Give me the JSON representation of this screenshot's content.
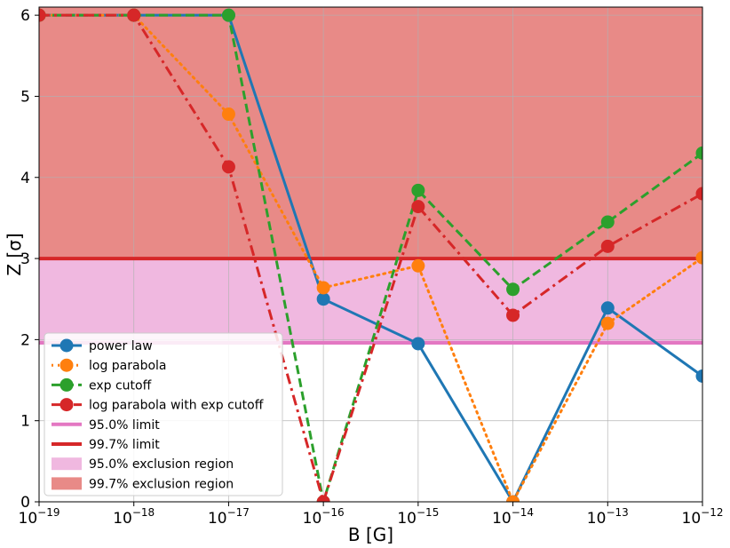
{
  "chart_data": {
    "type": "line",
    "xlabel": "B [G]",
    "ylabel": "Z [σ]",
    "xscale": "log",
    "xlim": [
      1e-19,
      1e-12
    ],
    "ylim": [
      0,
      6.1
    ],
    "grid": true,
    "legend_position": "lower-left",
    "x": [
      1e-19,
      1e-18,
      1e-17,
      1e-16,
      1e-15,
      1e-14,
      1e-13,
      1e-12
    ],
    "x_tick_labels": [
      {
        "base": "10",
        "exp": "−19"
      },
      {
        "base": "10",
        "exp": "−18"
      },
      {
        "base": "10",
        "exp": "−17"
      },
      {
        "base": "10",
        "exp": "−16"
      },
      {
        "base": "10",
        "exp": "−15"
      },
      {
        "base": "10",
        "exp": "−14"
      },
      {
        "base": "10",
        "exp": "−13"
      },
      {
        "base": "10",
        "exp": "−12"
      }
    ],
    "y_ticks": [
      0,
      1,
      2,
      3,
      4,
      5,
      6
    ],
    "y_tick_labels": [
      "0",
      "1",
      "2",
      "3",
      "4",
      "5",
      "6"
    ],
    "series": [
      {
        "name": "power law",
        "color": "#1f77b4",
        "style": "solid",
        "values": [
          6.0,
          6.0,
          6.0,
          2.5,
          1.95,
          0.0,
          2.39,
          1.55
        ]
      },
      {
        "name": "log parabola",
        "color": "#ff7f0e",
        "style": "dotted",
        "values": [
          6.0,
          6.0,
          4.78,
          2.64,
          2.91,
          0.0,
          2.2,
          3.01
        ]
      },
      {
        "name": "exp cutoff",
        "color": "#2ca02c",
        "style": "dashed",
        "values": [
          6.0,
          6.0,
          6.0,
          0.0,
          3.84,
          2.62,
          3.45,
          4.3
        ]
      },
      {
        "name": "log parabola with exp cutoff",
        "color": "#d62728",
        "style": "dashdot",
        "values": [
          6.0,
          6.0,
          4.13,
          0.0,
          3.64,
          2.3,
          3.15,
          3.8
        ]
      }
    ],
    "limits": [
      {
        "name": "95.0% limit",
        "value": 1.96,
        "color": "#e377c2"
      },
      {
        "name": "99.7% limit",
        "value": 3.0,
        "color": "#d62728"
      }
    ],
    "regions": [
      {
        "name": "95.0% exclusion region",
        "from": 1.96,
        "to": 3.0,
        "color": "#f0b8e0"
      },
      {
        "name": "99.7% exclusion region",
        "from": 3.0,
        "to": 6.1,
        "color": "#e88a87"
      }
    ]
  }
}
